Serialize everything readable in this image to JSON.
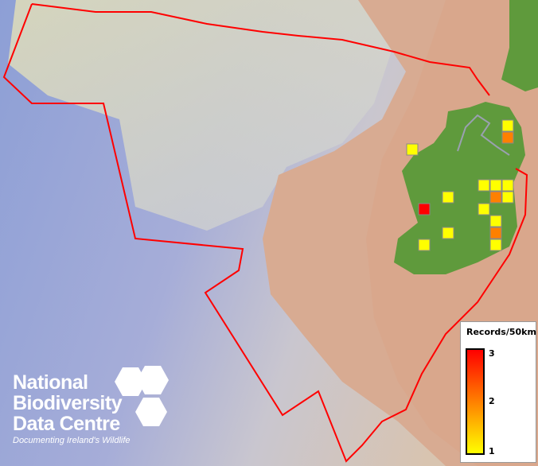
{
  "legend": {
    "title": "Records/50km",
    "ticks": [
      "3",
      "2",
      "1"
    ],
    "color_max": "#ff0000",
    "color_mid": "#ff8000",
    "color_min": "#ffff00"
  },
  "logo": {
    "lines": [
      "National",
      "Biodiversity",
      "Data Centre"
    ],
    "tagline": "Documenting Ireland's Wildlife"
  },
  "colors": {
    "boundary": "#ff0000",
    "land": "#5f9a3c",
    "ocean": "#8fa0d8",
    "border": "#999999"
  },
  "grid_cells": [
    {
      "row": 0,
      "col": 8,
      "records": 1
    },
    {
      "row": 1,
      "col": 8,
      "records": 2
    },
    {
      "row": 2,
      "col": 0,
      "records": 1
    },
    {
      "row": 5,
      "col": 6,
      "records": 1
    },
    {
      "row": 5,
      "col": 7,
      "records": 1
    },
    {
      "row": 5,
      "col": 8,
      "records": 1
    },
    {
      "row": 6,
      "col": 3,
      "records": 1
    },
    {
      "row": 6,
      "col": 7,
      "records": 2
    },
    {
      "row": 6,
      "col": 8,
      "records": 1
    },
    {
      "row": 7,
      "col": 1,
      "records": 3
    },
    {
      "row": 7,
      "col": 6,
      "records": 1
    },
    {
      "row": 8,
      "col": 7,
      "records": 1
    },
    {
      "row": 9,
      "col": 3,
      "records": 1
    },
    {
      "row": 9,
      "col": 7,
      "records": 2
    },
    {
      "row": 10,
      "col": 1,
      "records": 1
    },
    {
      "row": 10,
      "col": 7,
      "records": 1
    }
  ]
}
